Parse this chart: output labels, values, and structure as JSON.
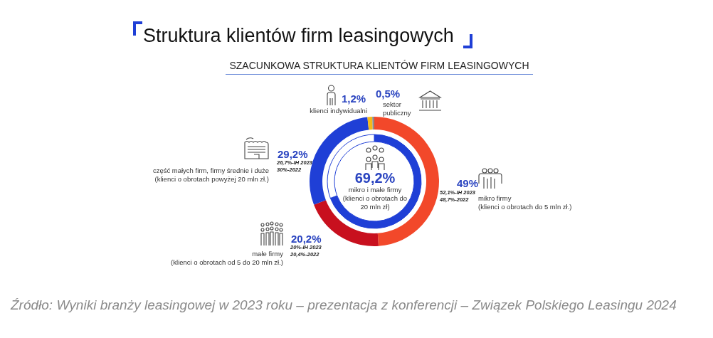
{
  "chart_data": [
    {
      "type": "donut",
      "title": "Struktura klientów firm leasingowych",
      "subtitle": "SZACUNKOWA STRUKTURA KLIENTÓW FIRM LEASINGOWYCH",
      "categories": [
        "mikro firmy\n(klienci o obrotach do 5 mln zł.)",
        "małe firmy\n(klienci o obrotach od 5 do 20 mln zł.)",
        "część małych firm, firmy średnie i duże\n(klienci o obrotach powyżej 20 mln zł.)",
        "klienci indywidualni",
        "sektor\npubliczny"
      ],
      "values": [
        49,
        20.2,
        29.2,
        1.2,
        0.5
      ],
      "colors": [
        "#f2482a",
        "#c8101e",
        "#1f3fd6",
        "#f5b818",
        "#8c8c8c"
      ],
      "value_labels": [
        "49%",
        "20,2%",
        "29,2%",
        "1,2%",
        "0,5%"
      ],
      "annotations": [
        "52,1%-IH 2023\n48,7%-2022",
        "20%-IH 2023\n20,4%-2022",
        "26,7%-IH 2023\n30%-2022",
        "Źródło: Wyniki branży leasingowej w 2023 roku – prezentacja z konferencji – Związek Polskiego Leasingu 2024"
      ]
    },
    {
      "type": "donut",
      "categories": [
        "mikro i małe firmy\n(klienci o obrotach do\n20 mln zł)",
        null
      ],
      "values": [
        69.2,
        30.8
      ],
      "colors": [
        "#1f3fd6",
        "#ffffff"
      ],
      "value_labels": [
        "69,2%",
        null
      ]
    }
  ]
}
